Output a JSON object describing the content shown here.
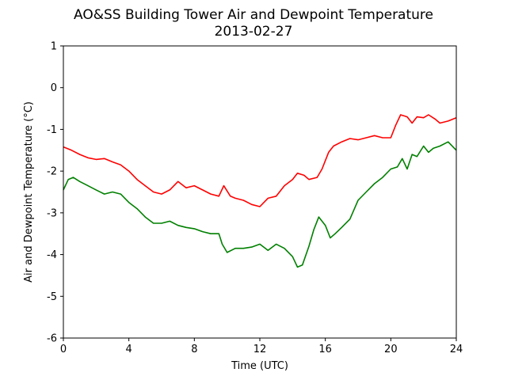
{
  "chart_data": {
    "type": "line",
    "title": "AO&SS Building Tower Air and Dewpoint Temperature",
    "subtitle": "2013-02-27",
    "xlabel": "Time (UTC)",
    "ylabel": "Air and Dewpoint Temperature (°C)",
    "xlim": [
      0,
      24
    ],
    "ylim": [
      -6,
      1
    ],
    "xticks": [
      0,
      4,
      8,
      12,
      16,
      20,
      24
    ],
    "yticks": [
      1,
      0,
      -1,
      -2,
      -3,
      -4,
      -5,
      -6
    ],
    "grid": false,
    "legend": "none",
    "series": [
      {
        "color": "#ff0000",
        "x": [
          0,
          0.5,
          1,
          1.5,
          2,
          2.5,
          3,
          3.5,
          4,
          4.5,
          5,
          5.5,
          6,
          6.5,
          7,
          7.5,
          8,
          8.5,
          9,
          9.5,
          9.8,
          10.2,
          10.5,
          11,
          11.5,
          12,
          12.5,
          13,
          13.5,
          14,
          14.3,
          14.7,
          15,
          15.5,
          15.8,
          16.2,
          16.5,
          17,
          17.5,
          18,
          18.5,
          19,
          19.5,
          20,
          20.3,
          20.6,
          21,
          21.3,
          21.6,
          22,
          22.3,
          22.7,
          23,
          23.5,
          24
        ],
        "y": [
          -1.42,
          -1.5,
          -1.6,
          -1.68,
          -1.72,
          -1.7,
          -1.78,
          -1.85,
          -2.0,
          -2.2,
          -2.35,
          -2.5,
          -2.55,
          -2.45,
          -2.25,
          -2.4,
          -2.35,
          -2.45,
          -2.55,
          -2.6,
          -2.35,
          -2.6,
          -2.65,
          -2.7,
          -2.8,
          -2.85,
          -2.65,
          -2.6,
          -2.35,
          -2.2,
          -2.05,
          -2.1,
          -2.2,
          -2.15,
          -1.95,
          -1.55,
          -1.4,
          -1.3,
          -1.22,
          -1.25,
          -1.2,
          -1.15,
          -1.2,
          -1.2,
          -0.9,
          -0.65,
          -0.7,
          -0.85,
          -0.7,
          -0.72,
          -0.65,
          -0.75,
          -0.85,
          -0.8,
          -0.72
        ]
      },
      {
        "color": "#008000",
        "x": [
          0,
          0.3,
          0.6,
          1,
          1.5,
          2,
          2.5,
          3,
          3.5,
          4,
          4.5,
          5,
          5.5,
          6,
          6.5,
          7,
          7.5,
          8,
          8.5,
          9,
          9.5,
          9.7,
          10,
          10.5,
          11,
          11.5,
          12,
          12.5,
          13,
          13.5,
          14,
          14.3,
          14.6,
          15,
          15.3,
          15.6,
          16,
          16.3,
          16.6,
          17,
          17.5,
          18,
          18.5,
          19,
          19.5,
          20,
          20.4,
          20.7,
          21,
          21.3,
          21.6,
          22,
          22.3,
          22.6,
          23,
          23.5,
          24
        ],
        "y": [
          -2.45,
          -2.2,
          -2.15,
          -2.25,
          -2.35,
          -2.45,
          -2.55,
          -2.5,
          -2.55,
          -2.75,
          -2.9,
          -3.1,
          -3.25,
          -3.25,
          -3.2,
          -3.3,
          -3.35,
          -3.38,
          -3.45,
          -3.5,
          -3.5,
          -3.75,
          -3.95,
          -3.85,
          -3.85,
          -3.82,
          -3.75,
          -3.9,
          -3.75,
          -3.85,
          -4.05,
          -4.3,
          -4.25,
          -3.8,
          -3.4,
          -3.1,
          -3.3,
          -3.6,
          -3.5,
          -3.35,
          -3.15,
          -2.7,
          -2.5,
          -2.3,
          -2.15,
          -1.95,
          -1.9,
          -1.7,
          -1.95,
          -1.6,
          -1.65,
          -1.4,
          -1.55,
          -1.45,
          -1.4,
          -1.3,
          -1.5
        ]
      }
    ]
  }
}
